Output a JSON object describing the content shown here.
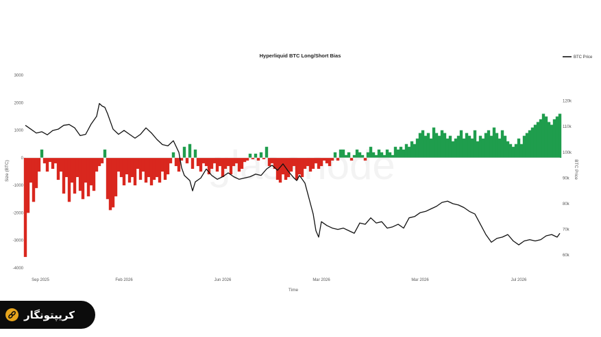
{
  "colors": {
    "long": "#1f9d4d",
    "short": "#d9271e",
    "price": "#111111",
    "grid": "#eeeeee",
    "brand_accent": "#e7a51d"
  },
  "watermark_text": "glassnode",
  "brand": {
    "text": "کریپتونگار",
    "icon": "chain-link-icon"
  },
  "chart_data": {
    "type": "bar",
    "title": "Hyperliquid BTC Long/Short Bias",
    "xlabel": "Time",
    "ylabel_left": "Size (BTC)",
    "ylabel_right": "BTC Price",
    "legend": {
      "label": "BTC Price",
      "position": "top-right"
    },
    "grid": false,
    "ylim_left": [
      -4000,
      3000
    ],
    "ylim_right": [
      55000,
      130000
    ],
    "yticks_left": [
      {
        "v": 3000,
        "t": "3000"
      },
      {
        "v": 2000,
        "t": "2000"
      },
      {
        "v": 1000,
        "t": "1000"
      },
      {
        "v": 0,
        "t": "0"
      },
      {
        "v": -1000,
        "t": "-1000"
      },
      {
        "v": -2000,
        "t": "-2000"
      },
      {
        "v": -3000,
        "t": "-3000"
      },
      {
        "v": -4000,
        "t": "-4000"
      }
    ],
    "yticks_right": [
      {
        "v": 120000,
        "t": "120k"
      },
      {
        "v": 110000,
        "t": "110k"
      },
      {
        "v": 100000,
        "t": "100k"
      },
      {
        "v": 90000,
        "t": "90k"
      },
      {
        "v": 80000,
        "t": "80k"
      },
      {
        "v": 70000,
        "t": "70k"
      },
      {
        "v": 60000,
        "t": "60k"
      }
    ],
    "xticks": [
      {
        "i": 0,
        "t": "Sep 2025"
      },
      {
        "i": 36,
        "t": "Feb 2026"
      },
      {
        "i": 72,
        "t": "Jun 2026"
      },
      {
        "i": 108,
        "t": "Mar 2026"
      },
      {
        "i": 144,
        "t": "Mar 2026"
      },
      {
        "i": 180,
        "t": "Jul 2026"
      }
    ],
    "x_count": 196,
    "bias_keys": [
      [
        0,
        -3600
      ],
      [
        1,
        -2000
      ],
      [
        2,
        -900
      ],
      [
        3,
        -1600
      ],
      [
        4,
        -1100
      ],
      [
        5,
        -500
      ],
      [
        6,
        300
      ],
      [
        7,
        -200
      ],
      [
        8,
        -500
      ],
      [
        9,
        -150
      ],
      [
        10,
        -400
      ],
      [
        11,
        -200
      ],
      [
        12,
        -800
      ],
      [
        13,
        -500
      ],
      [
        14,
        -1300
      ],
      [
        15,
        -700
      ],
      [
        16,
        -1600
      ],
      [
        17,
        -900
      ],
      [
        18,
        -1300
      ],
      [
        19,
        -700
      ],
      [
        20,
        -1200
      ],
      [
        21,
        -1500
      ],
      [
        22,
        -900
      ],
      [
        23,
        -1400
      ],
      [
        24,
        -1000
      ],
      [
        25,
        -1200
      ],
      [
        26,
        -500
      ],
      [
        27,
        -300
      ],
      [
        28,
        -200
      ],
      [
        29,
        300
      ],
      [
        30,
        -1500
      ],
      [
        31,
        -1900
      ],
      [
        32,
        -1800
      ],
      [
        33,
        -1400
      ],
      [
        34,
        -500
      ],
      [
        35,
        -700
      ],
      [
        36,
        -1000
      ],
      [
        37,
        -600
      ],
      [
        38,
        -900
      ],
      [
        39,
        -700
      ],
      [
        40,
        -1000
      ],
      [
        41,
        -400
      ],
      [
        42,
        -800
      ],
      [
        43,
        -500
      ],
      [
        44,
        -900
      ],
      [
        45,
        -700
      ],
      [
        46,
        -1000
      ],
      [
        47,
        -800
      ],
      [
        48,
        -700
      ],
      [
        49,
        -900
      ],
      [
        50,
        -500
      ],
      [
        51,
        -800
      ],
      [
        52,
        -600
      ],
      [
        53,
        -200
      ],
      [
        54,
        200
      ],
      [
        55,
        -300
      ],
      [
        56,
        -500
      ],
      [
        57,
        -100
      ],
      [
        58,
        400
      ],
      [
        59,
        -200
      ],
      [
        60,
        500
      ],
      [
        61,
        -400
      ],
      [
        62,
        300
      ],
      [
        63,
        -300
      ],
      [
        64,
        -500
      ],
      [
        65,
        -200
      ],
      [
        66,
        -300
      ],
      [
        67,
        -600
      ],
      [
        68,
        -400
      ],
      [
        69,
        -200
      ],
      [
        70,
        -500
      ],
      [
        71,
        -300
      ],
      [
        72,
        -700
      ],
      [
        73,
        -400
      ],
      [
        74,
        -300
      ],
      [
        75,
        -600
      ],
      [
        76,
        -300
      ],
      [
        77,
        -200
      ],
      [
        78,
        -500
      ],
      [
        79,
        -400
      ],
      [
        80,
        -150
      ],
      [
        81,
        -100
      ],
      [
        82,
        150
      ],
      [
        83,
        -50
      ],
      [
        84,
        150
      ],
      [
        85,
        -100
      ],
      [
        86,
        200
      ],
      [
        87,
        -50
      ],
      [
        88,
        400
      ],
      [
        89,
        -300
      ],
      [
        90,
        -200
      ],
      [
        91,
        -400
      ],
      [
        92,
        -800
      ],
      [
        93,
        -900
      ],
      [
        94,
        -600
      ],
      [
        95,
        -800
      ],
      [
        96,
        -700
      ],
      [
        97,
        -500
      ],
      [
        98,
        -300
      ],
      [
        99,
        -800
      ],
      [
        100,
        -600
      ],
      [
        101,
        -700
      ],
      [
        102,
        -400
      ],
      [
        103,
        -300
      ],
      [
        104,
        -500
      ],
      [
        105,
        -400
      ],
      [
        106,
        -200
      ],
      [
        107,
        -400
      ],
      [
        108,
        -300
      ],
      [
        109,
        -100
      ],
      [
        110,
        -200
      ],
      [
        111,
        -300
      ],
      [
        112,
        -100
      ],
      [
        113,
        200
      ],
      [
        114,
        -100
      ],
      [
        115,
        300
      ],
      [
        116,
        300
      ],
      [
        117,
        100
      ],
      [
        118,
        200
      ],
      [
        119,
        -100
      ],
      [
        120,
        100
      ],
      [
        121,
        300
      ],
      [
        122,
        200
      ],
      [
        123,
        100
      ],
      [
        124,
        -100
      ],
      [
        125,
        200
      ],
      [
        126,
        400
      ],
      [
        127,
        200
      ],
      [
        128,
        100
      ],
      [
        129,
        300
      ],
      [
        130,
        200
      ],
      [
        131,
        100
      ],
      [
        132,
        300
      ],
      [
        133,
        200
      ],
      [
        134,
        100
      ],
      [
        135,
        400
      ],
      [
        136,
        300
      ],
      [
        137,
        400
      ],
      [
        138,
        300
      ],
      [
        139,
        500
      ],
      [
        140,
        400
      ],
      [
        141,
        600
      ],
      [
        142,
        500
      ],
      [
        143,
        700
      ],
      [
        144,
        900
      ],
      [
        145,
        1000
      ],
      [
        146,
        800
      ],
      [
        147,
        900
      ],
      [
        148,
        700
      ],
      [
        149,
        1100
      ],
      [
        150,
        900
      ],
      [
        151,
        800
      ],
      [
        152,
        1000
      ],
      [
        153,
        900
      ],
      [
        154,
        700
      ],
      [
        155,
        800
      ],
      [
        156,
        600
      ],
      [
        157,
        700
      ],
      [
        158,
        800
      ],
      [
        159,
        1000
      ],
      [
        160,
        700
      ],
      [
        161,
        900
      ],
      [
        162,
        800
      ],
      [
        163,
        700
      ],
      [
        164,
        1000
      ],
      [
        165,
        600
      ],
      [
        166,
        800
      ],
      [
        167,
        700
      ],
      [
        168,
        900
      ],
      [
        169,
        1000
      ],
      [
        170,
        800
      ],
      [
        171,
        1100
      ],
      [
        172,
        900
      ],
      [
        173,
        700
      ],
      [
        174,
        1000
      ],
      [
        175,
        800
      ],
      [
        176,
        600
      ],
      [
        177,
        500
      ],
      [
        178,
        400
      ],
      [
        179,
        500
      ],
      [
        180,
        700
      ],
      [
        181,
        500
      ],
      [
        182,
        800
      ],
      [
        183,
        900
      ],
      [
        184,
        1000
      ],
      [
        185,
        1100
      ],
      [
        186,
        1200
      ],
      [
        187,
        1300
      ],
      [
        188,
        1400
      ],
      [
        189,
        1600
      ],
      [
        190,
        1500
      ],
      [
        191,
        1300
      ],
      [
        192,
        1200
      ],
      [
        193,
        1400
      ],
      [
        194,
        1500
      ],
      [
        195,
        1600
      ]
    ],
    "price_keys": [
      [
        0,
        110500
      ],
      [
        2,
        109000
      ],
      [
        4,
        107500
      ],
      [
        6,
        108000
      ],
      [
        8,
        106800
      ],
      [
        10,
        108500
      ],
      [
        12,
        109000
      ],
      [
        14,
        110500
      ],
      [
        16,
        110800
      ],
      [
        18,
        109500
      ],
      [
        20,
        106500
      ],
      [
        22,
        107000
      ],
      [
        24,
        111000
      ],
      [
        26,
        114000
      ],
      [
        27,
        119000
      ],
      [
        28,
        118000
      ],
      [
        29,
        117500
      ],
      [
        30,
        115000
      ],
      [
        31,
        112000
      ],
      [
        32,
        109000
      ],
      [
        33,
        108000
      ],
      [
        34,
        107000
      ],
      [
        36,
        108500
      ],
      [
        38,
        107000
      ],
      [
        40,
        105500
      ],
      [
        42,
        107000
      ],
      [
        44,
        109500
      ],
      [
        46,
        107500
      ],
      [
        48,
        105000
      ],
      [
        50,
        103000
      ],
      [
        52,
        102500
      ],
      [
        54,
        104500
      ],
      [
        56,
        100000
      ],
      [
        57,
        94000
      ],
      [
        58,
        91000
      ],
      [
        60,
        89000
      ],
      [
        61,
        85000
      ],
      [
        62,
        88500
      ],
      [
        64,
        90000
      ],
      [
        66,
        93500
      ],
      [
        68,
        91000
      ],
      [
        70,
        89500
      ],
      [
        72,
        90500
      ],
      [
        74,
        92000
      ],
      [
        76,
        90500
      ],
      [
        78,
        89500
      ],
      [
        80,
        90000
      ],
      [
        82,
        90500
      ],
      [
        84,
        91500
      ],
      [
        86,
        91000
      ],
      [
        88,
        93500
      ],
      [
        90,
        95000
      ],
      [
        91,
        94000
      ],
      [
        92,
        93000
      ],
      [
        94,
        95500
      ],
      [
        96,
        92500
      ],
      [
        98,
        90000
      ],
      [
        99,
        89000
      ],
      [
        100,
        91000
      ],
      [
        102,
        88000
      ],
      [
        103,
        84000
      ],
      [
        104,
        80000
      ],
      [
        105,
        76000
      ],
      [
        106,
        69500
      ],
      [
        107,
        67000
      ],
      [
        108,
        73000
      ],
      [
        110,
        71500
      ],
      [
        112,
        70500
      ],
      [
        114,
        70000
      ],
      [
        116,
        70500
      ],
      [
        118,
        69500
      ],
      [
        120,
        68500
      ],
      [
        122,
        72500
      ],
      [
        124,
        72000
      ],
      [
        126,
        74500
      ],
      [
        128,
        72500
      ],
      [
        130,
        73000
      ],
      [
        132,
        70500
      ],
      [
        134,
        71000
      ],
      [
        136,
        72000
      ],
      [
        138,
        70500
      ],
      [
        140,
        74500
      ],
      [
        142,
        75000
      ],
      [
        144,
        76500
      ],
      [
        146,
        77000
      ],
      [
        148,
        78000
      ],
      [
        150,
        79000
      ],
      [
        152,
        80500
      ],
      [
        154,
        81000
      ],
      [
        156,
        80000
      ],
      [
        158,
        79500
      ],
      [
        160,
        78500
      ],
      [
        162,
        77000
      ],
      [
        164,
        76000
      ],
      [
        166,
        72000
      ],
      [
        168,
        68000
      ],
      [
        170,
        65000
      ],
      [
        172,
        66500
      ],
      [
        174,
        67000
      ],
      [
        176,
        68000
      ],
      [
        178,
        65500
      ],
      [
        180,
        64000
      ],
      [
        182,
        65500
      ],
      [
        184,
        66000
      ],
      [
        186,
        65500
      ],
      [
        188,
        66000
      ],
      [
        190,
        67500
      ],
      [
        192,
        68000
      ],
      [
        194,
        67000
      ],
      [
        195,
        68500
      ]
    ]
  }
}
